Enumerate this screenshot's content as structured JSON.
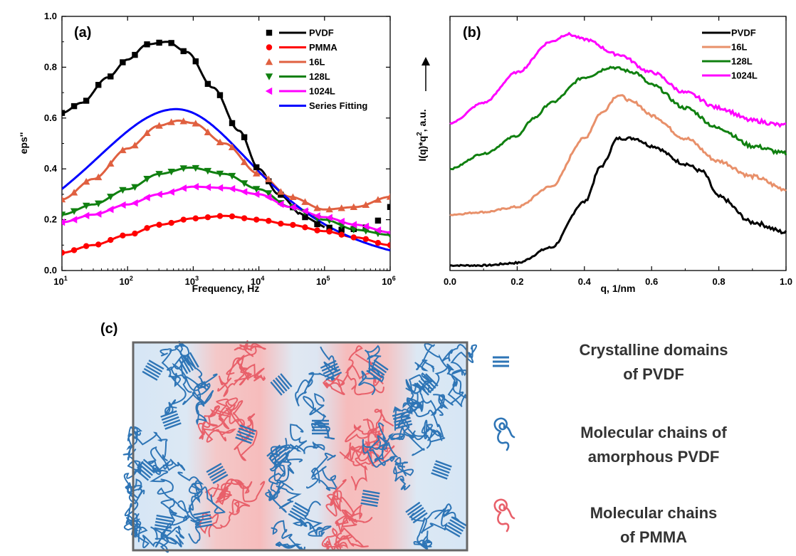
{
  "chart_data": [
    {
      "panel": "(a)",
      "type": "scatter",
      "xlabel": "Frequency, Hz",
      "ylabel": "eps''",
      "xscale": "log",
      "xlim": [
        10,
        1000000
      ],
      "ylim": [
        0.0,
        1.0
      ],
      "xticks": [
        "10",
        "10",
        "10",
        "10",
        "10",
        "10"
      ],
      "xtick_exponents": [
        "1",
        "2",
        "3",
        "4",
        "5",
        "6"
      ],
      "yticks": [
        "0.0",
        "0.2",
        "0.4",
        "0.6",
        "0.8",
        "1.0"
      ],
      "legend_position": "top-right",
      "series": [
        {
          "name": "PVDF",
          "color": "#000000",
          "marker": "square",
          "line": true,
          "peak_x": 400,
          "peak_y": 0.91,
          "points": [
            [
              10,
              0.62
            ],
            [
              20,
              0.66
            ],
            [
              50,
              0.76
            ],
            [
              100,
              0.83
            ],
            [
              200,
              0.89
            ],
            [
              400,
              0.9
            ],
            [
              800,
              0.86
            ],
            [
              2000,
              0.72
            ],
            [
              5000,
              0.55
            ],
            [
              10000,
              0.4
            ],
            [
              20000,
              0.3
            ],
            [
              50000,
              0.21
            ],
            [
              100000,
              0.17
            ],
            [
              200000,
              0.16
            ],
            [
              500000,
              0.17
            ],
            [
              1000000,
              0.25
            ]
          ]
        },
        {
          "name": "PMMA",
          "color": "#ff0000",
          "marker": "circle",
          "line": true,
          "peak_x": 2500,
          "peak_y": 0.215,
          "points": [
            [
              10,
              0.07
            ],
            [
              30,
              0.1
            ],
            [
              100,
              0.14
            ],
            [
              300,
              0.18
            ],
            [
              1000,
              0.205
            ],
            [
              3000,
              0.215
            ],
            [
              10000,
              0.2
            ],
            [
              30000,
              0.18
            ],
            [
              100000,
              0.155
            ],
            [
              300000,
              0.13
            ],
            [
              1000000,
              0.1
            ]
          ]
        },
        {
          "name": "16L",
          "color": "#e06040",
          "marker": "triangle-up",
          "line": true,
          "peak_x": 600,
          "peak_y": 0.59,
          "points": [
            [
              10,
              0.28
            ],
            [
              30,
              0.36
            ],
            [
              100,
              0.48
            ],
            [
              300,
              0.57
            ],
            [
              600,
              0.59
            ],
            [
              1000,
              0.58
            ],
            [
              3000,
              0.5
            ],
            [
              10000,
              0.38
            ],
            [
              30000,
              0.29
            ],
            [
              100000,
              0.24
            ],
            [
              300000,
              0.25
            ],
            [
              1000000,
              0.29
            ]
          ]
        },
        {
          "name": "128L",
          "color": "#108010",
          "marker": "triangle-down",
          "line": true,
          "peak_x": 900,
          "peak_y": 0.405,
          "points": [
            [
              10,
              0.22
            ],
            [
              30,
              0.26
            ],
            [
              100,
              0.32
            ],
            [
              300,
              0.38
            ],
            [
              900,
              0.405
            ],
            [
              3000,
              0.38
            ],
            [
              10000,
              0.32
            ],
            [
              30000,
              0.25
            ],
            [
              100000,
              0.2
            ],
            [
              300000,
              0.16
            ],
            [
              1000000,
              0.14
            ]
          ]
        },
        {
          "name": "1024L",
          "color": "#ff00ff",
          "marker": "triangle-left",
          "line": true,
          "peak_x": 1500,
          "peak_y": 0.33,
          "points": [
            [
              10,
              0.19
            ],
            [
              30,
              0.22
            ],
            [
              100,
              0.26
            ],
            [
              300,
              0.3
            ],
            [
              1000,
              0.33
            ],
            [
              3000,
              0.325
            ],
            [
              10000,
              0.3
            ],
            [
              30000,
              0.25
            ],
            [
              100000,
              0.21
            ],
            [
              300000,
              0.18
            ],
            [
              1000000,
              0.15
            ]
          ]
        },
        {
          "name": "Series Fitting",
          "color": "#0000ff",
          "marker": "none",
          "line": true,
          "peak_x": 550,
          "peak_y": 0.635
        }
      ]
    },
    {
      "panel": "(b)",
      "type": "line",
      "xlabel": "q, 1/nm",
      "ylabel": "I(q)*q",
      "ylabel_sup": "2",
      "ylabel_suffix": ", a.u.",
      "xlim": [
        0.0,
        1.0
      ],
      "ylim": [
        0,
        1
      ],
      "xticks": [
        "0.0",
        "0.2",
        "0.4",
        "0.6",
        "0.8",
        "1.0"
      ],
      "legend_position": "top-right",
      "series": [
        {
          "name": "PVDF",
          "color": "#000000",
          "points": [
            [
              0.0,
              0.02
            ],
            [
              0.1,
              0.02
            ],
            [
              0.2,
              0.03
            ],
            [
              0.3,
              0.09
            ],
            [
              0.4,
              0.27
            ],
            [
              0.45,
              0.41
            ],
            [
              0.5,
              0.52
            ],
            [
              0.55,
              0.52
            ],
            [
              0.6,
              0.49
            ],
            [
              0.7,
              0.42
            ],
            [
              0.75,
              0.39
            ],
            [
              0.8,
              0.29
            ],
            [
              0.9,
              0.19
            ],
            [
              1.0,
              0.15
            ]
          ]
        },
        {
          "name": "16L",
          "color": "#e8906a",
          "points": [
            [
              0.0,
              0.22
            ],
            [
              0.1,
              0.23
            ],
            [
              0.2,
              0.25
            ],
            [
              0.3,
              0.33
            ],
            [
              0.4,
              0.52
            ],
            [
              0.45,
              0.62
            ],
            [
              0.5,
              0.69
            ],
            [
              0.55,
              0.66
            ],
            [
              0.6,
              0.61
            ],
            [
              0.7,
              0.52
            ],
            [
              0.8,
              0.43
            ],
            [
              0.9,
              0.37
            ],
            [
              1.0,
              0.32
            ]
          ]
        },
        {
          "name": "128L",
          "color": "#108010",
          "points": [
            [
              0.0,
              0.4
            ],
            [
              0.1,
              0.46
            ],
            [
              0.2,
              0.53
            ],
            [
              0.25,
              0.6
            ],
            [
              0.3,
              0.66
            ],
            [
              0.4,
              0.76
            ],
            [
              0.48,
              0.8
            ],
            [
              0.55,
              0.78
            ],
            [
              0.6,
              0.73
            ],
            [
              0.7,
              0.64
            ],
            [
              0.8,
              0.56
            ],
            [
              0.9,
              0.49
            ],
            [
              1.0,
              0.46
            ]
          ]
        },
        {
          "name": "1024L",
          "color": "#ff00ff",
          "points": [
            [
              0.0,
              0.58
            ],
            [
              0.1,
              0.66
            ],
            [
              0.2,
              0.78
            ],
            [
              0.3,
              0.9
            ],
            [
              0.35,
              0.93
            ],
            [
              0.4,
              0.91
            ],
            [
              0.5,
              0.85
            ],
            [
              0.6,
              0.78
            ],
            [
              0.7,
              0.7
            ],
            [
              0.8,
              0.64
            ],
            [
              0.9,
              0.59
            ],
            [
              1.0,
              0.57
            ]
          ]
        }
      ]
    }
  ],
  "panel_c": {
    "label": "(c)",
    "legend": [
      {
        "line1": "Crystalline domains",
        "line2": "of PVDF",
        "icon": "crystalline-lamella-icon",
        "color": "#2e75b6"
      },
      {
        "line1": "Molecular chains of",
        "line2": "amorphous PVDF",
        "icon": "blue-chain-coil-icon",
        "color": "#2e75b6"
      },
      {
        "line1": "Molecular chains",
        "line2": "of PMMA",
        "icon": "red-chain-coil-icon",
        "color": "#e8606a"
      }
    ]
  }
}
